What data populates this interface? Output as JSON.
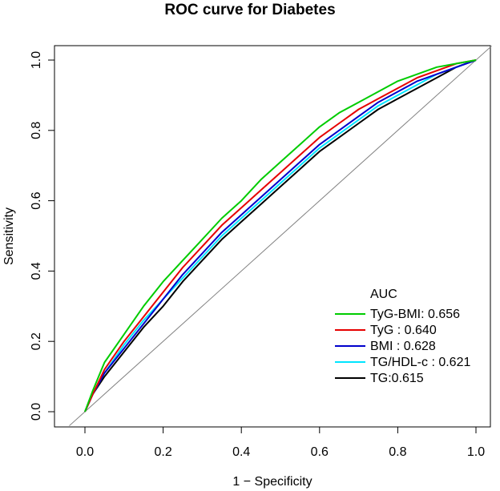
{
  "chart_data": {
    "type": "line",
    "title": "ROC curve for Diabetes",
    "xlabel": "1 − Specificity",
    "ylabel": "Sensitivity",
    "xlim": [
      0.0,
      1.0
    ],
    "ylim": [
      0.0,
      1.0
    ],
    "x_ticks": [
      "0.0",
      "0.2",
      "0.4",
      "0.6",
      "0.8",
      "1.0"
    ],
    "y_ticks": [
      "0.0",
      "0.2",
      "0.4",
      "0.6",
      "0.8",
      "1.0"
    ],
    "grid": false,
    "reference_line": {
      "x": [
        0,
        1
      ],
      "y": [
        0,
        1
      ],
      "color": "#808080"
    },
    "legend": {
      "title": "AUC",
      "position": "bottom-right"
    },
    "series": [
      {
        "name": "TyG-BMI: 0.656",
        "color": "#00cc00",
        "x": [
          0,
          0.02,
          0.05,
          0.1,
          0.15,
          0.2,
          0.25,
          0.3,
          0.35,
          0.4,
          0.45,
          0.5,
          0.55,
          0.6,
          0.65,
          0.7,
          0.75,
          0.8,
          0.85,
          0.9,
          0.95,
          1.0
        ],
        "y": [
          0,
          0.06,
          0.14,
          0.22,
          0.3,
          0.37,
          0.43,
          0.49,
          0.55,
          0.6,
          0.66,
          0.71,
          0.76,
          0.81,
          0.85,
          0.88,
          0.91,
          0.94,
          0.96,
          0.98,
          0.99,
          1.0
        ]
      },
      {
        "name": "TyG : 0.640",
        "color": "#e60000",
        "x": [
          0,
          0.02,
          0.05,
          0.1,
          0.15,
          0.2,
          0.25,
          0.3,
          0.35,
          0.4,
          0.45,
          0.5,
          0.55,
          0.6,
          0.65,
          0.7,
          0.75,
          0.8,
          0.85,
          0.9,
          0.95,
          1.0
        ],
        "y": [
          0,
          0.05,
          0.12,
          0.2,
          0.27,
          0.34,
          0.41,
          0.47,
          0.53,
          0.58,
          0.63,
          0.68,
          0.73,
          0.78,
          0.82,
          0.86,
          0.89,
          0.92,
          0.95,
          0.97,
          0.99,
          1.0
        ]
      },
      {
        "name": "BMI : 0.628",
        "color": "#0000cc",
        "x": [
          0,
          0.02,
          0.05,
          0.1,
          0.15,
          0.2,
          0.25,
          0.3,
          0.35,
          0.4,
          0.45,
          0.5,
          0.55,
          0.6,
          0.65,
          0.7,
          0.75,
          0.8,
          0.85,
          0.9,
          0.95,
          1.0
        ],
        "y": [
          0,
          0.05,
          0.11,
          0.18,
          0.25,
          0.32,
          0.39,
          0.45,
          0.51,
          0.56,
          0.61,
          0.66,
          0.71,
          0.76,
          0.8,
          0.84,
          0.88,
          0.91,
          0.94,
          0.96,
          0.98,
          1.0
        ]
      },
      {
        "name": "TG/HDL-c : 0.621",
        "color": "#00e5ff",
        "x": [
          0,
          0.02,
          0.05,
          0.1,
          0.15,
          0.2,
          0.25,
          0.3,
          0.35,
          0.4,
          0.45,
          0.5,
          0.55,
          0.6,
          0.65,
          0.7,
          0.75,
          0.8,
          0.85,
          0.9,
          0.95,
          1.0
        ],
        "y": [
          0,
          0.05,
          0.11,
          0.19,
          0.26,
          0.32,
          0.38,
          0.44,
          0.5,
          0.55,
          0.6,
          0.65,
          0.7,
          0.75,
          0.79,
          0.83,
          0.87,
          0.9,
          0.93,
          0.96,
          0.98,
          1.0
        ]
      },
      {
        "name": "TG:0.615",
        "color": "#000000",
        "x": [
          0,
          0.02,
          0.05,
          0.1,
          0.15,
          0.2,
          0.25,
          0.3,
          0.35,
          0.4,
          0.45,
          0.5,
          0.55,
          0.6,
          0.65,
          0.7,
          0.75,
          0.8,
          0.85,
          0.9,
          0.95,
          1.0
        ],
        "y": [
          0,
          0.05,
          0.1,
          0.17,
          0.24,
          0.3,
          0.37,
          0.43,
          0.49,
          0.54,
          0.59,
          0.64,
          0.69,
          0.74,
          0.78,
          0.82,
          0.86,
          0.89,
          0.92,
          0.95,
          0.98,
          1.0
        ]
      }
    ]
  }
}
